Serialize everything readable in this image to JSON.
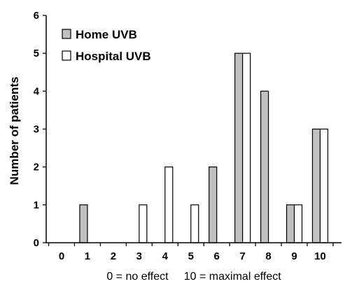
{
  "colors": {
    "home": "#c0c0c0",
    "hospital": "#ffffff",
    "axis": "#000000"
  },
  "chart_data": {
    "type": "bar",
    "categories": [
      "0",
      "1",
      "2",
      "3",
      "4",
      "5",
      "6",
      "7",
      "8",
      "9",
      "10"
    ],
    "series": [
      {
        "name": "Home UVB",
        "values": [
          0,
          1,
          0,
          0,
          0,
          0,
          2,
          5,
          4,
          1,
          3
        ]
      },
      {
        "name": "Hospital UVB",
        "values": [
          0,
          0,
          0,
          1,
          2,
          1,
          0,
          5,
          0,
          1,
          3
        ]
      }
    ],
    "title": "",
    "xlabel": "0 = no effect     10 = maximal effect",
    "ylabel": "Number of patients",
    "ylim": [
      0,
      6
    ],
    "yticks": [
      "0",
      "1",
      "2",
      "3",
      "4",
      "5",
      "6"
    ],
    "grid": false,
    "legend_position": "top-left"
  }
}
